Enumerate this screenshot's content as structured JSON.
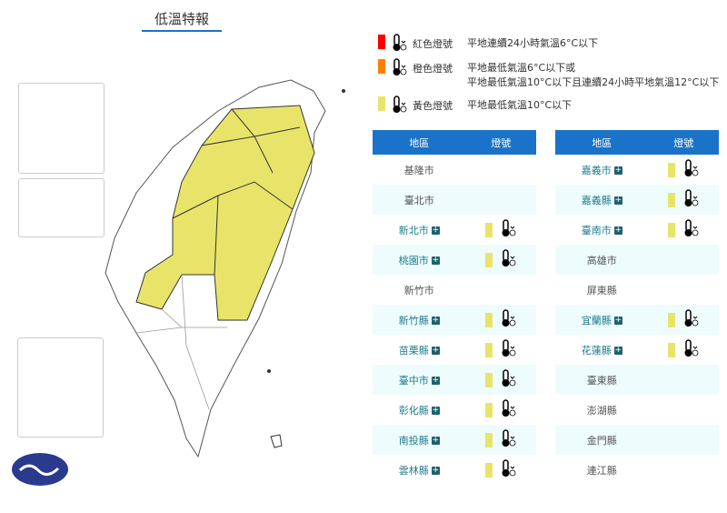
{
  "title": "低溫特報",
  "colors": {
    "red": "#ff0000",
    "orange": "#ff8000",
    "yellow": "#e8e46a",
    "header": "#1a73c8"
  },
  "legend": [
    {
      "color": "#ff0000",
      "name": "紅色燈號",
      "desc": "平地連續24小時氣溫6°C以下"
    },
    {
      "color": "#ff8000",
      "name": "橙色燈號",
      "desc": "平地最低氣溫6°C以下或",
      "desc2": "平地最低氣溫10°C以下且連續24小時平地氣溫12°C以下"
    },
    {
      "color": "#e8e46a",
      "name": "黃色燈號",
      "desc": "平地最低氣溫10°C以下"
    }
  ],
  "table_headers": {
    "region": "地區",
    "signal": "燈號"
  },
  "left_rows": [
    {
      "name": "基隆市",
      "level": "none"
    },
    {
      "name": "臺北市",
      "level": "none"
    },
    {
      "name": "新北市",
      "level": "yellow"
    },
    {
      "name": "桃園市",
      "level": "yellow"
    },
    {
      "name": "新竹市",
      "level": "none"
    },
    {
      "name": "新竹縣",
      "level": "yellow"
    },
    {
      "name": "苗栗縣",
      "level": "yellow"
    },
    {
      "name": "臺中市",
      "level": "yellow"
    },
    {
      "name": "彰化縣",
      "level": "yellow"
    },
    {
      "name": "南投縣",
      "level": "yellow"
    },
    {
      "name": "雲林縣",
      "level": "yellow"
    }
  ],
  "right_rows": [
    {
      "name": "嘉義市",
      "level": "yellow"
    },
    {
      "name": "嘉義縣",
      "level": "yellow"
    },
    {
      "name": "臺南市",
      "level": "yellow"
    },
    {
      "name": "高雄市",
      "level": "none"
    },
    {
      "name": "屏東縣",
      "level": "none"
    },
    {
      "name": "宜蘭縣",
      "level": "yellow"
    },
    {
      "name": "花蓮縣",
      "level": "yellow"
    },
    {
      "name": "臺東縣",
      "level": "none"
    },
    {
      "name": "澎湖縣",
      "level": "none"
    },
    {
      "name": "金門縣",
      "level": "none"
    },
    {
      "name": "連江縣",
      "level": "none"
    }
  ]
}
